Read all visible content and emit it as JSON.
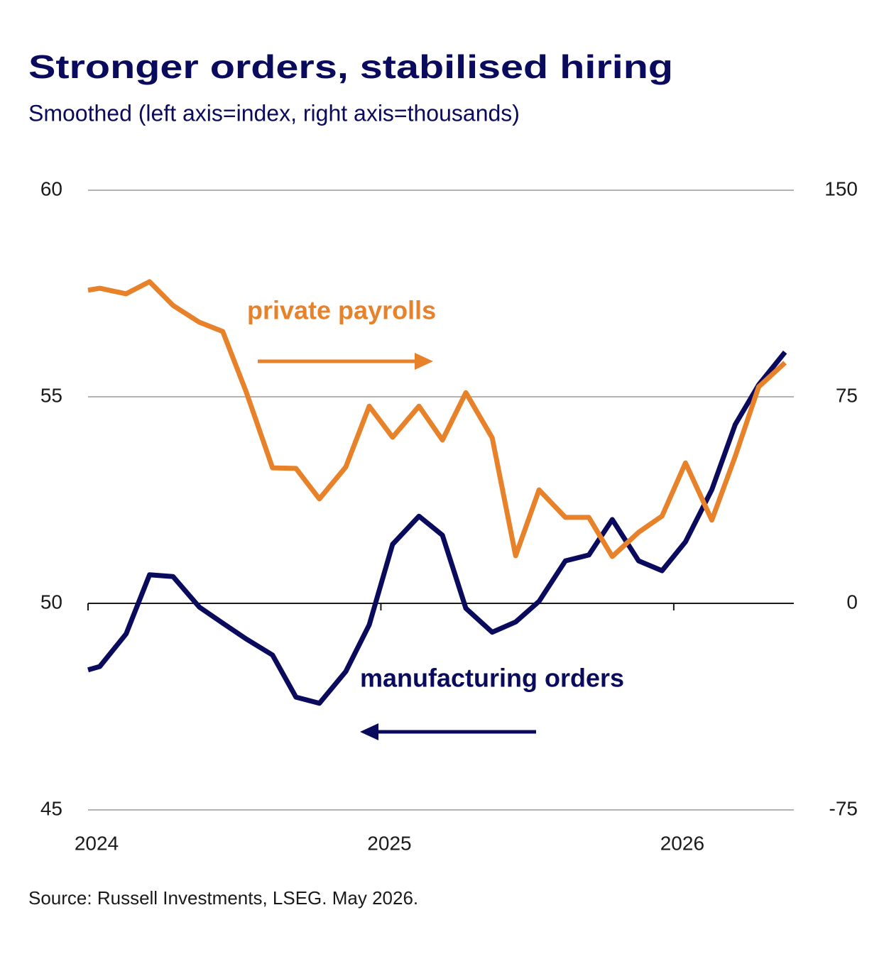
{
  "chart_data": {
    "type": "line",
    "title": "Stronger orders, stabilised hiring",
    "subtitle": "Smoothed (left axis=index, right axis=thousands)",
    "source": "Source: Russell Investments, LSEG. May 2026.",
    "x": [
      2024,
      2024.04,
      2024.13,
      2024.21,
      2024.29,
      2024.38,
      2024.46,
      2024.54,
      2024.63,
      2024.71,
      2024.79,
      2024.88,
      2024.96,
      2025.04,
      2025.13,
      2025.21,
      2025.29,
      2025.38,
      2025.46,
      2025.54,
      2025.63,
      2025.71,
      2025.79,
      2025.88,
      2025.96,
      2026.04,
      2026.13,
      2026.21,
      2026.29,
      2026.38
    ],
    "xlim": [
      2024,
      2026.41
    ],
    "xticks": [
      2024,
      2025,
      2026
    ],
    "ylim": [
      45,
      60
    ],
    "yticks": [
      45,
      50,
      55,
      60
    ],
    "y2lim": [
      -75,
      150
    ],
    "y2ticks": [
      -75,
      0,
      75,
      150
    ],
    "grid": true,
    "series": [
      {
        "name": "manufacturing orders",
        "color": "#0b0b5e",
        "axis": "y",
        "values": [
          48.39,
          48.47,
          49.26,
          50.69,
          50.65,
          49.91,
          49.52,
          49.14,
          48.75,
          47.73,
          47.58,
          48.35,
          49.48,
          51.43,
          52.11,
          51.65,
          49.88,
          49.3,
          49.55,
          50.05,
          51.03,
          51.17,
          52.03,
          51.03,
          50.79,
          51.49,
          52.75,
          54.33,
          55.29,
          56.08
        ]
      },
      {
        "name": "private payrolls",
        "color": "#e8822a",
        "axis": "y2",
        "values": [
          113.7,
          114.4,
          112.4,
          116.8,
          108.2,
          102.1,
          98.7,
          76.8,
          49.2,
          49.0,
          37.9,
          49.5,
          71.6,
          60.3,
          71.6,
          59.3,
          76.5,
          60.1,
          17.3,
          41.2,
          31.2,
          31.2,
          17.0,
          25.8,
          31.7,
          51.0,
          30.2,
          53.4,
          78.6,
          87.4
        ]
      }
    ]
  }
}
